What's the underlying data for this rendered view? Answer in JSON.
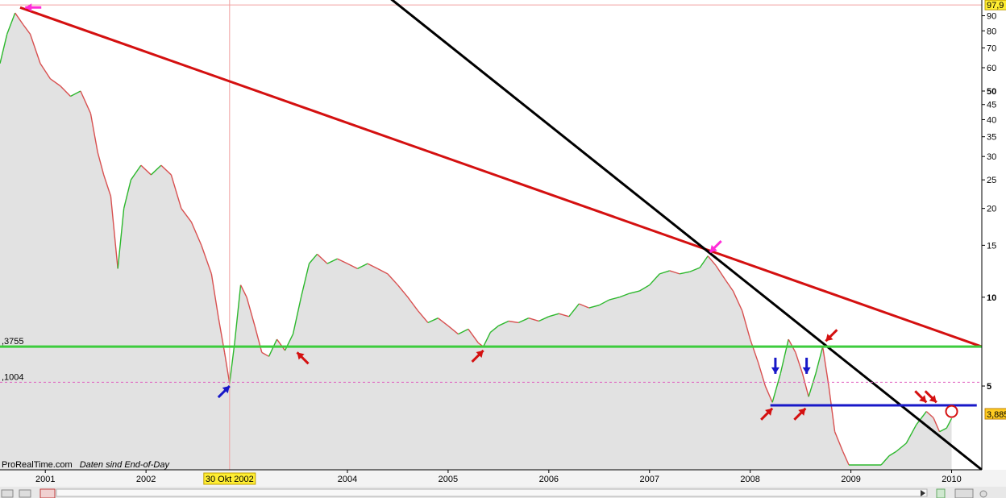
{
  "chart_data": {
    "type": "line",
    "title": "",
    "scale": "log",
    "grid": false,
    "x_range": [
      2000.55,
      2010.3
    ],
    "ylim": [
      2.6,
      98
    ],
    "x_tick_labels": [
      "2001",
      "2002",
      "2004",
      "2005",
      "2006",
      "2007",
      "2008",
      "2009",
      "2010"
    ],
    "x_ticks": [
      2001,
      2002,
      2004,
      2005,
      2006,
      2007,
      2008,
      2009,
      2010
    ],
    "y_tick_labels": [
      "90",
      "80",
      "70",
      "60",
      "50",
      "45",
      "40",
      "35",
      "30",
      "25",
      "20",
      "15",
      "10",
      "5"
    ],
    "y_ticks": [
      90,
      80,
      70,
      60,
      50,
      45,
      40,
      35,
      30,
      25,
      20,
      15,
      10,
      5
    ],
    "y_bold_ticks": [
      50,
      10,
      5
    ],
    "max_label": "97,9",
    "max_value": 97.9,
    "last_label": "3,885",
    "last_value": 3.885,
    "crosshair_label": "30 Okt 2002",
    "crosshair_x": 2002.83,
    "series": [
      {
        "color": "#2db82d",
        "points": [
          [
            2000.55,
            62
          ],
          [
            2000.62,
            78
          ],
          [
            2000.7,
            92
          ],
          [
            2000.78,
            84
          ],
          [
            2000.85,
            78
          ],
          [
            2000.95,
            62
          ],
          [
            2001.05,
            55
          ],
          [
            2001.15,
            52
          ],
          [
            2001.25,
            48
          ],
          [
            2001.35,
            50
          ],
          [
            2001.45,
            42
          ],
          [
            2001.52,
            31
          ],
          [
            2001.58,
            26
          ],
          [
            2001.65,
            22
          ],
          [
            2001.72,
            12.5
          ],
          [
            2001.78,
            20
          ],
          [
            2001.85,
            25
          ],
          [
            2001.95,
            28
          ],
          [
            2002.05,
            26
          ],
          [
            2002.15,
            28
          ],
          [
            2002.25,
            26
          ],
          [
            2002.35,
            20
          ],
          [
            2002.45,
            18
          ],
          [
            2002.55,
            15
          ],
          [
            2002.65,
            12
          ],
          [
            2002.72,
            8.5
          ],
          [
            2002.78,
            6.5
          ],
          [
            2002.83,
            5.1
          ],
          [
            2002.88,
            7
          ],
          [
            2002.94,
            11
          ],
          [
            2003.0,
            10
          ],
          [
            2003.08,
            8
          ],
          [
            2003.15,
            6.5
          ],
          [
            2003.22,
            6.3
          ],
          [
            2003.3,
            7.2
          ],
          [
            2003.38,
            6.6
          ],
          [
            2003.46,
            7.5
          ],
          [
            2003.54,
            10
          ],
          [
            2003.62,
            13
          ],
          [
            2003.7,
            14
          ],
          [
            2003.8,
            13
          ],
          [
            2003.9,
            13.5
          ],
          [
            2004.0,
            13
          ],
          [
            2004.1,
            12.5
          ],
          [
            2004.2,
            13
          ],
          [
            2004.3,
            12.5
          ],
          [
            2004.4,
            12
          ],
          [
            2004.5,
            11
          ],
          [
            2004.6,
            10
          ],
          [
            2004.7,
            9
          ],
          [
            2004.8,
            8.2
          ],
          [
            2004.9,
            8.5
          ],
          [
            2005.0,
            8
          ],
          [
            2005.1,
            7.5
          ],
          [
            2005.2,
            7.8
          ],
          [
            2005.3,
            7
          ],
          [
            2005.35,
            6.8
          ],
          [
            2005.42,
            7.6
          ],
          [
            2005.5,
            8
          ],
          [
            2005.6,
            8.3
          ],
          [
            2005.7,
            8.2
          ],
          [
            2005.8,
            8.5
          ],
          [
            2005.9,
            8.3
          ],
          [
            2006.0,
            8.6
          ],
          [
            2006.1,
            8.8
          ],
          [
            2006.2,
            8.6
          ],
          [
            2006.3,
            9.5
          ],
          [
            2006.4,
            9.2
          ],
          [
            2006.5,
            9.4
          ],
          [
            2006.6,
            9.8
          ],
          [
            2006.7,
            10
          ],
          [
            2006.8,
            10.3
          ],
          [
            2006.9,
            10.5
          ],
          [
            2007.0,
            11
          ],
          [
            2007.1,
            12
          ],
          [
            2007.2,
            12.3
          ],
          [
            2007.3,
            12
          ],
          [
            2007.4,
            12.2
          ],
          [
            2007.5,
            12.6
          ],
          [
            2007.58,
            13.8
          ],
          [
            2007.66,
            12.8
          ],
          [
            2007.75,
            11.5
          ],
          [
            2007.83,
            10.5
          ],
          [
            2007.92,
            9
          ],
          [
            2008.0,
            7.2
          ],
          [
            2008.08,
            6
          ],
          [
            2008.15,
            5
          ],
          [
            2008.22,
            4.4
          ],
          [
            2008.3,
            5.5
          ],
          [
            2008.38,
            7.2
          ],
          [
            2008.45,
            6.5
          ],
          [
            2008.52,
            5.5
          ],
          [
            2008.58,
            4.6
          ],
          [
            2008.65,
            5.5
          ],
          [
            2008.72,
            6.8
          ],
          [
            2008.78,
            5
          ],
          [
            2008.84,
            3.5
          ],
          [
            2008.92,
            3.0
          ],
          [
            2008.98,
            2.7
          ],
          [
            2009.3,
            2.7
          ],
          [
            2009.38,
            2.9
          ],
          [
            2009.45,
            3.0
          ],
          [
            2009.55,
            3.2
          ],
          [
            2009.65,
            3.7
          ],
          [
            2009.75,
            4.1
          ],
          [
            2009.82,
            3.9
          ],
          [
            2009.88,
            3.5
          ],
          [
            2009.95,
            3.6
          ],
          [
            2010.0,
            3.885
          ]
        ]
      }
    ],
    "lines": [
      {
        "color": "#d41010",
        "from": [
          2000.75,
          96
        ],
        "to": [
          2010.3,
          6.8
        ]
      },
      {
        "color": "#000000",
        "from": [
          2004.25,
          115
        ],
        "to": [
          2010.3,
          2.6
        ]
      },
      {
        "color": "#3dcc3d",
        "from": [
          2000.55,
          6.8
        ],
        "to": [
          2010.3,
          6.8
        ]
      },
      {
        "color": "#1818c8",
        "from": [
          2008.2,
          4.3
        ],
        "to": [
          2010.25,
          4.3
        ]
      },
      {
        "color": "#e060c0",
        "dashed": true,
        "from": [
          2000.55,
          5.15
        ],
        "to": [
          2010.3,
          5.15
        ]
      }
    ],
    "left_labels": [
      {
        "text": ",3755",
        "y": 6.8
      },
      {
        "text": ",1004",
        "y": 5.15
      }
    ],
    "arrows": [
      {
        "color": "#ff2cd8",
        "at": [
          2000.8,
          96
        ],
        "dir": "left"
      },
      {
        "color": "#ff2cd8",
        "at": [
          2007.6,
          14.2
        ],
        "dir": "down-left"
      },
      {
        "color": "#1818c8",
        "at": [
          2002.83,
          5.0
        ],
        "dir": "up-right"
      },
      {
        "color": "#d41010",
        "at": [
          2003.5,
          6.5
        ],
        "dir": "up-left"
      },
      {
        "color": "#d41010",
        "at": [
          2005.35,
          6.6
        ],
        "dir": "up-right"
      },
      {
        "color": "#d41010",
        "at": [
          2008.22,
          4.2
        ],
        "dir": "up-right"
      },
      {
        "color": "#1818c8",
        "at": [
          2008.25,
          5.5
        ],
        "dir": "down"
      },
      {
        "color": "#d41010",
        "at": [
          2008.55,
          4.2
        ],
        "dir": "up-right"
      },
      {
        "color": "#1818c8",
        "at": [
          2008.56,
          5.5
        ],
        "dir": "down"
      },
      {
        "color": "#d41010",
        "at": [
          2008.75,
          7.1
        ],
        "dir": "down-left"
      },
      {
        "color": "#d41010",
        "at": [
          2009.75,
          4.4
        ],
        "dir": "down-right"
      },
      {
        "color": "#d41010",
        "at": [
          2009.85,
          4.4
        ],
        "dir": "down-right"
      }
    ],
    "circle": {
      "color": "#d41010",
      "at": [
        2010.0,
        4.1
      ]
    },
    "credit": "ProRealTime.com",
    "credit_note": "Daten sind End-of-Day"
  }
}
